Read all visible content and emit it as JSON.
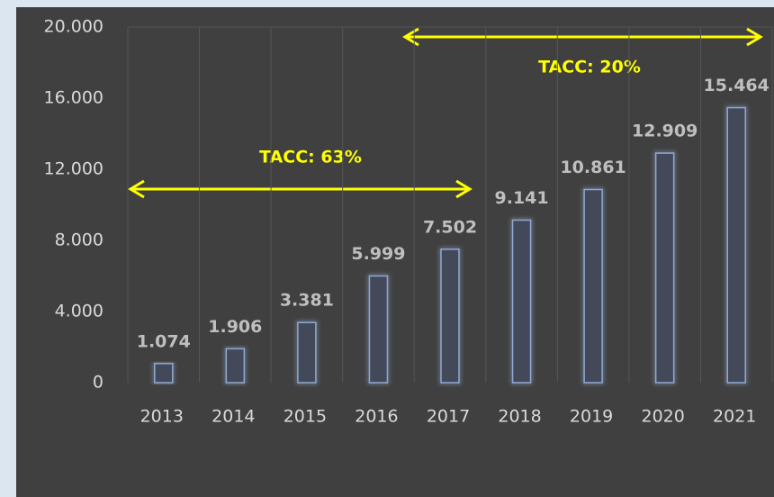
{
  "chart_data": {
    "type": "bar",
    "categories": [
      "2013",
      "2014",
      "2015",
      "2016",
      "2017",
      "2018",
      "2019",
      "2020",
      "2021"
    ],
    "values": [
      1074,
      1906,
      3381,
      5999,
      7502,
      9141,
      10861,
      12909,
      15464
    ],
    "value_labels": [
      "1.074",
      "1.906",
      "3.381",
      "5.999",
      "7.502",
      "9.141",
      "10.861",
      "12.909",
      "15.464"
    ],
    "color": "#8ea9d0",
    "ylim": [
      0,
      20000
    ],
    "yticks": [
      0,
      {
        "value": 4000,
        "label": "4.000"
      },
      {
        "value": 8000,
        "label": "8.000"
      },
      {
        "value": 12000,
        "label": "12.000"
      },
      {
        "value": 16000,
        "label": "16.000"
      },
      {
        "value": 20000,
        "label": "20.000"
      }
    ],
    "annotations": [
      "TACC: 63%",
      "TACC: 20%"
    ],
    "annotation_color": "#ffff00"
  }
}
